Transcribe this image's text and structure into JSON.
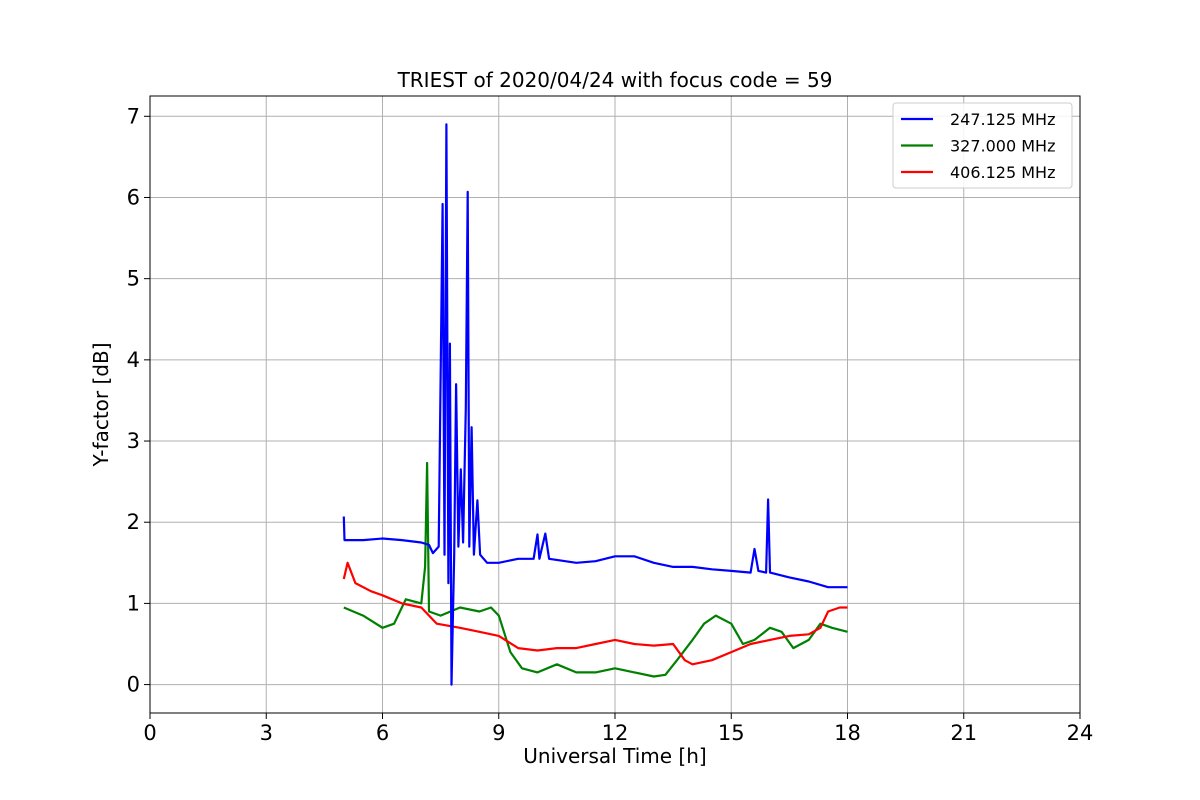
{
  "chart_data": {
    "type": "line",
    "title": "TRIEST of 2020/04/24 with focus code = 59",
    "xlabel": "Universal Time [h]",
    "ylabel": "Y-factor [dB]",
    "xlim": [
      0,
      24
    ],
    "ylim": [
      -0.35,
      7.25
    ],
    "xticks": [
      0,
      3,
      6,
      9,
      12,
      15,
      18,
      21,
      24
    ],
    "yticks": [
      0,
      1,
      2,
      3,
      4,
      5,
      6,
      7
    ],
    "grid": true,
    "legend_position": "top-right",
    "series": [
      {
        "name": "247.125 MHz",
        "color": "#0000ff",
        "points": [
          [
            5.0,
            2.07
          ],
          [
            5.02,
            1.78
          ],
          [
            5.5,
            1.78
          ],
          [
            6.0,
            1.8
          ],
          [
            6.5,
            1.78
          ],
          [
            7.0,
            1.75
          ],
          [
            7.2,
            1.72
          ],
          [
            7.3,
            1.62
          ],
          [
            7.45,
            1.7
          ],
          [
            7.55,
            5.92
          ],
          [
            7.6,
            1.6
          ],
          [
            7.65,
            6.9
          ],
          [
            7.7,
            1.25
          ],
          [
            7.74,
            4.2
          ],
          [
            7.78,
            0.0
          ],
          [
            7.85,
            1.6
          ],
          [
            7.9,
            3.7
          ],
          [
            7.96,
            1.7
          ],
          [
            8.02,
            2.65
          ],
          [
            8.08,
            1.75
          ],
          [
            8.15,
            3.4
          ],
          [
            8.2,
            6.07
          ],
          [
            8.24,
            1.7
          ],
          [
            8.3,
            3.17
          ],
          [
            8.36,
            1.6
          ],
          [
            8.45,
            2.27
          ],
          [
            8.52,
            1.6
          ],
          [
            8.7,
            1.5
          ],
          [
            9.0,
            1.5
          ],
          [
            9.5,
            1.55
          ],
          [
            9.9,
            1.55
          ],
          [
            10.0,
            1.85
          ],
          [
            10.05,
            1.55
          ],
          [
            10.2,
            1.86
          ],
          [
            10.3,
            1.55
          ],
          [
            11.0,
            1.5
          ],
          [
            11.5,
            1.52
          ],
          [
            12.0,
            1.58
          ],
          [
            12.5,
            1.58
          ],
          [
            13.0,
            1.5
          ],
          [
            13.5,
            1.45
          ],
          [
            14.0,
            1.45
          ],
          [
            14.5,
            1.42
          ],
          [
            15.0,
            1.4
          ],
          [
            15.5,
            1.38
          ],
          [
            15.6,
            1.67
          ],
          [
            15.7,
            1.4
          ],
          [
            15.9,
            1.38
          ],
          [
            15.95,
            2.28
          ],
          [
            16.0,
            1.38
          ],
          [
            16.5,
            1.32
          ],
          [
            17.0,
            1.27
          ],
          [
            17.5,
            1.2
          ],
          [
            17.8,
            1.2
          ],
          [
            18.0,
            1.2
          ]
        ]
      },
      {
        "name": "327.000 MHz",
        "color": "#008000",
        "points": [
          [
            5.0,
            0.95
          ],
          [
            5.5,
            0.85
          ],
          [
            6.0,
            0.7
          ],
          [
            6.3,
            0.75
          ],
          [
            6.6,
            1.05
          ],
          [
            7.0,
            1.0
          ],
          [
            7.1,
            1.45
          ],
          [
            7.15,
            2.73
          ],
          [
            7.2,
            0.9
          ],
          [
            7.5,
            0.85
          ],
          [
            8.0,
            0.95
          ],
          [
            8.5,
            0.9
          ],
          [
            8.8,
            0.95
          ],
          [
            9.0,
            0.85
          ],
          [
            9.3,
            0.4
          ],
          [
            9.6,
            0.2
          ],
          [
            10.0,
            0.15
          ],
          [
            10.5,
            0.25
          ],
          [
            11.0,
            0.15
          ],
          [
            11.5,
            0.15
          ],
          [
            12.0,
            0.2
          ],
          [
            12.5,
            0.15
          ],
          [
            13.0,
            0.1
          ],
          [
            13.3,
            0.12
          ],
          [
            13.6,
            0.3
          ],
          [
            14.0,
            0.55
          ],
          [
            14.3,
            0.75
          ],
          [
            14.6,
            0.85
          ],
          [
            15.0,
            0.75
          ],
          [
            15.3,
            0.5
          ],
          [
            15.6,
            0.55
          ],
          [
            16.0,
            0.7
          ],
          [
            16.3,
            0.65
          ],
          [
            16.6,
            0.45
          ],
          [
            17.0,
            0.55
          ],
          [
            17.3,
            0.75
          ],
          [
            17.6,
            0.7
          ],
          [
            18.0,
            0.65
          ]
        ]
      },
      {
        "name": "406.125 MHz",
        "color": "#ff0000",
        "points": [
          [
            5.0,
            1.3
          ],
          [
            5.1,
            1.5
          ],
          [
            5.3,
            1.25
          ],
          [
            5.7,
            1.15
          ],
          [
            6.0,
            1.1
          ],
          [
            6.5,
            1.0
          ],
          [
            7.0,
            0.95
          ],
          [
            7.4,
            0.75
          ],
          [
            8.0,
            0.7
          ],
          [
            8.5,
            0.65
          ],
          [
            9.0,
            0.6
          ],
          [
            9.5,
            0.45
          ],
          [
            10.0,
            0.42
          ],
          [
            10.5,
            0.45
          ],
          [
            11.0,
            0.45
          ],
          [
            11.5,
            0.5
          ],
          [
            12.0,
            0.55
          ],
          [
            12.5,
            0.5
          ],
          [
            13.0,
            0.48
          ],
          [
            13.5,
            0.5
          ],
          [
            13.8,
            0.3
          ],
          [
            14.0,
            0.25
          ],
          [
            14.5,
            0.3
          ],
          [
            15.0,
            0.4
          ],
          [
            15.5,
            0.5
          ],
          [
            16.0,
            0.55
          ],
          [
            16.5,
            0.6
          ],
          [
            17.0,
            0.62
          ],
          [
            17.3,
            0.7
          ],
          [
            17.5,
            0.9
          ],
          [
            17.8,
            0.95
          ],
          [
            18.0,
            0.95
          ]
        ]
      }
    ]
  }
}
